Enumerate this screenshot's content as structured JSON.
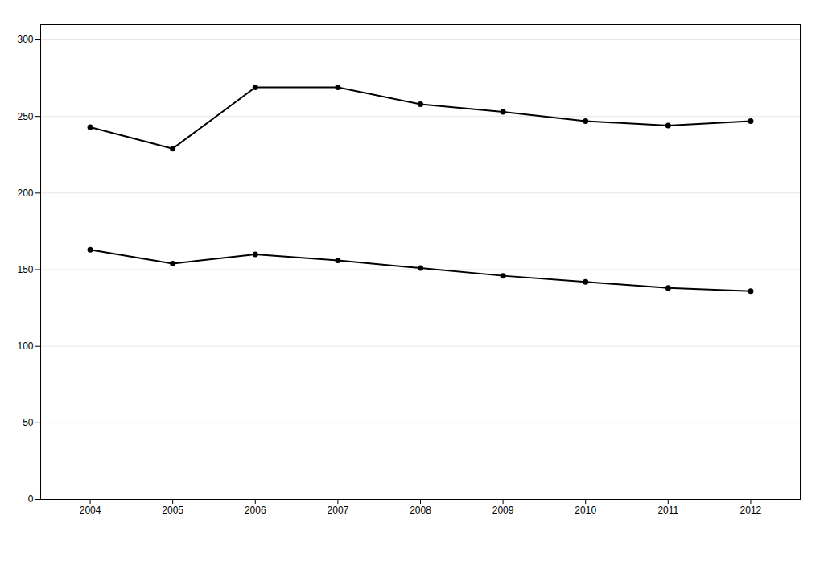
{
  "chart_data": {
    "type": "line",
    "x": [
      2004,
      2005,
      2006,
      2007,
      2008,
      2009,
      2010,
      2011,
      2012
    ],
    "series": [
      {
        "values": [
          243,
          229,
          269,
          269,
          258,
          253,
          247,
          244,
          247
        ]
      },
      {
        "values": [
          163,
          154,
          160,
          156,
          151,
          146,
          142,
          138,
          136
        ]
      }
    ],
    "xlim": [
      2003.4,
      2012.6
    ],
    "xticks": [
      2004,
      2005,
      2006,
      2007,
      2008,
      2009,
      2010,
      2011,
      2012
    ],
    "ylim": [
      0,
      310
    ],
    "yticks": [
      0,
      50,
      100,
      150,
      200,
      250,
      300
    ],
    "grid": "y",
    "marker": "circle"
  }
}
